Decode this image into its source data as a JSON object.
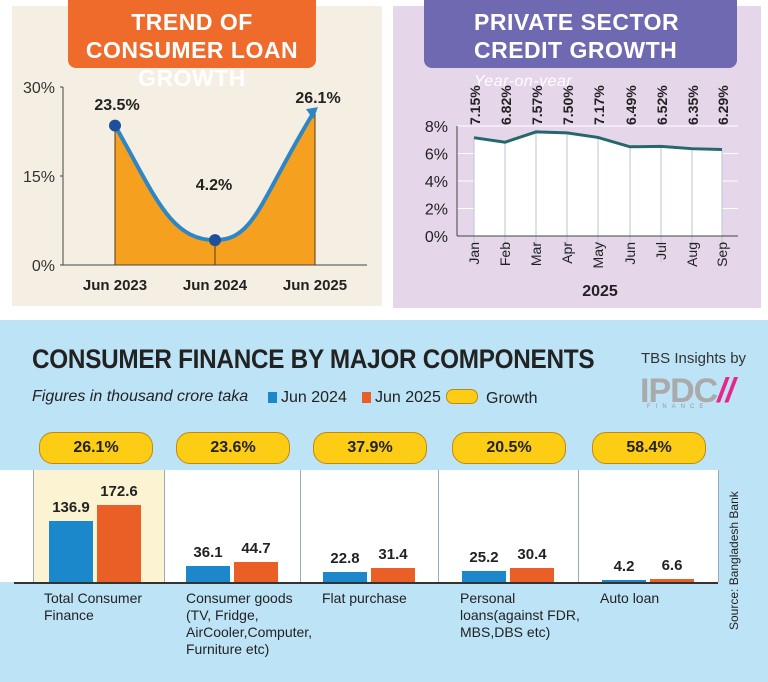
{
  "chart_data": [
    {
      "type": "area",
      "title": "TREND OF CONSUMER LOAN GROWTH",
      "categories": [
        "Jun 2023",
        "Jun 2024",
        "Jun 2025"
      ],
      "values": [
        23.5,
        4.2,
        26.1
      ],
      "data_labels": [
        "23.5%",
        "4.2%",
        "26.1%"
      ],
      "yticks": [
        "0%",
        "15%",
        "30%"
      ],
      "ylim": [
        0,
        30
      ],
      "color_fill": "#f6a01f",
      "color_line": "#2e86c4"
    },
    {
      "type": "area",
      "title": "PRIVATE SECTOR CREDIT GROWTH",
      "subtitle": "Year-on-year",
      "categories": [
        "Jan",
        "Feb",
        "Mar",
        "Apr",
        "May",
        "Jun",
        "Jul",
        "Aug",
        "Sep"
      ],
      "values": [
        7.15,
        6.82,
        7.57,
        7.5,
        7.17,
        6.49,
        6.52,
        6.35,
        6.29
      ],
      "data_labels": [
        "7.15%",
        "6.82%",
        "7.57%",
        "7.50%",
        "7.17%",
        "6.49%",
        "6.52%",
        "6.35%",
        "6.29%"
      ],
      "xlabel": "2025",
      "yticks": [
        "0%",
        "2%",
        "4%",
        "6%",
        "8%"
      ],
      "ylim": [
        0,
        8
      ],
      "color_line": "#24686d"
    },
    {
      "type": "bar",
      "title": "CONSUMER FINANCE BY MAJOR COMPONENTS",
      "subtitle": "Figures in thousand crore taka",
      "categories": [
        "Total Consumer Finance",
        "Consumer goods (TV, Fridge, AirCooler,Computer, Furniture etc)",
        "Flat purchase",
        "Personal loans(against FDR, MBS,DBS etc)",
        "Auto loan"
      ],
      "category_lines": [
        [
          "Total Consumer",
          "Finance"
        ],
        [
          "Consumer goods",
          "(TV, Fridge,",
          "AirCooler,Computer,",
          "Furniture etc)"
        ],
        [
          "Flat purchase"
        ],
        [
          "Personal",
          "loans(against FDR,",
          "MBS,DBS etc)"
        ],
        [
          "Auto loan"
        ]
      ],
      "series": [
        {
          "name": "Jun 2024",
          "values": [
            136.9,
            36.1,
            22.8,
            25.2,
            4.2
          ],
          "color": "#1b88cc"
        },
        {
          "name": "Jun 2025",
          "values": [
            172.6,
            44.7,
            31.4,
            30.4,
            6.6
          ],
          "color": "#ea5f26"
        }
      ],
      "growth_label": "Growth",
      "growth": [
        "26.1%",
        "23.6%",
        "37.9%",
        "20.5%",
        "58.4%"
      ],
      "growth_color": "#fdcc14"
    }
  ],
  "brand": {
    "text": "TBS Insights by",
    "logo": "IPDC",
    "logo_sub": "FINANCE"
  },
  "source": "Source: Bangladesh Bank"
}
